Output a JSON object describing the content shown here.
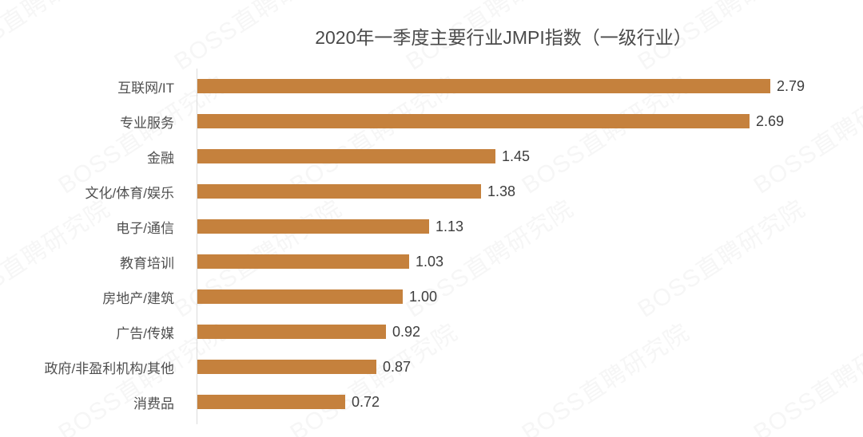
{
  "chart_data": {
    "type": "bar",
    "orientation": "horizontal",
    "title": "2020年一季度主要行业JMPI指数（一级行业）",
    "categories": [
      "互联网/IT",
      "专业服务",
      "金融",
      "文化/体育/娱乐",
      "电子/通信",
      "教育培训",
      "房地产/建筑",
      "广告/传媒",
      "政府/非盈利机构/其他",
      "消费品"
    ],
    "values": [
      2.79,
      2.69,
      1.45,
      1.38,
      1.13,
      1.03,
      1.0,
      0.92,
      0.87,
      0.72
    ],
    "value_labels": [
      "2.79",
      "2.69",
      "1.45",
      "1.38",
      "1.13",
      "1.03",
      "1.00",
      "0.92",
      "0.87",
      "0.72"
    ],
    "xlabel": "",
    "ylabel": "",
    "xlim": [
      0,
      3.0
    ],
    "grid": false,
    "legend": false,
    "bar_color": "#c5813d",
    "axis_line_color": "#dcdcdc",
    "label_color": "#4f4f4f",
    "value_color": "#3d3d3d",
    "title_color": "#4a4a4a"
  },
  "watermark": {
    "text": "BOSS直聘研究院"
  }
}
